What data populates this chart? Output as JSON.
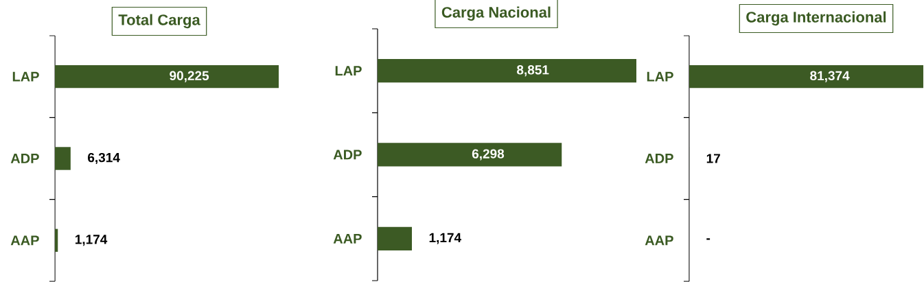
{
  "chart_data": [
    {
      "type": "bar",
      "orientation": "horizontal",
      "title": "Total Carga",
      "categories": [
        "LAP",
        "ADP",
        "AAP"
      ],
      "values": [
        90225,
        6314,
        1174
      ],
      "value_labels": [
        "90,225",
        "6,314",
        "1,174"
      ],
      "color": "#3c5a24"
    },
    {
      "type": "bar",
      "orientation": "horizontal",
      "title": "Carga Nacional",
      "categories": [
        "LAP",
        "ADP",
        "AAP"
      ],
      "values": [
        8851,
        6298,
        1174
      ],
      "value_labels": [
        "8,851",
        "6,298",
        "1,174"
      ],
      "color": "#3c5a24"
    },
    {
      "type": "bar",
      "orientation": "horizontal",
      "title": "Carga Internacional",
      "categories": [
        "LAP",
        "ADP",
        "AAP"
      ],
      "values": [
        81374,
        17,
        0
      ],
      "value_labels": [
        "81,374",
        "17",
        "-"
      ],
      "color": "#3c5a24"
    }
  ]
}
